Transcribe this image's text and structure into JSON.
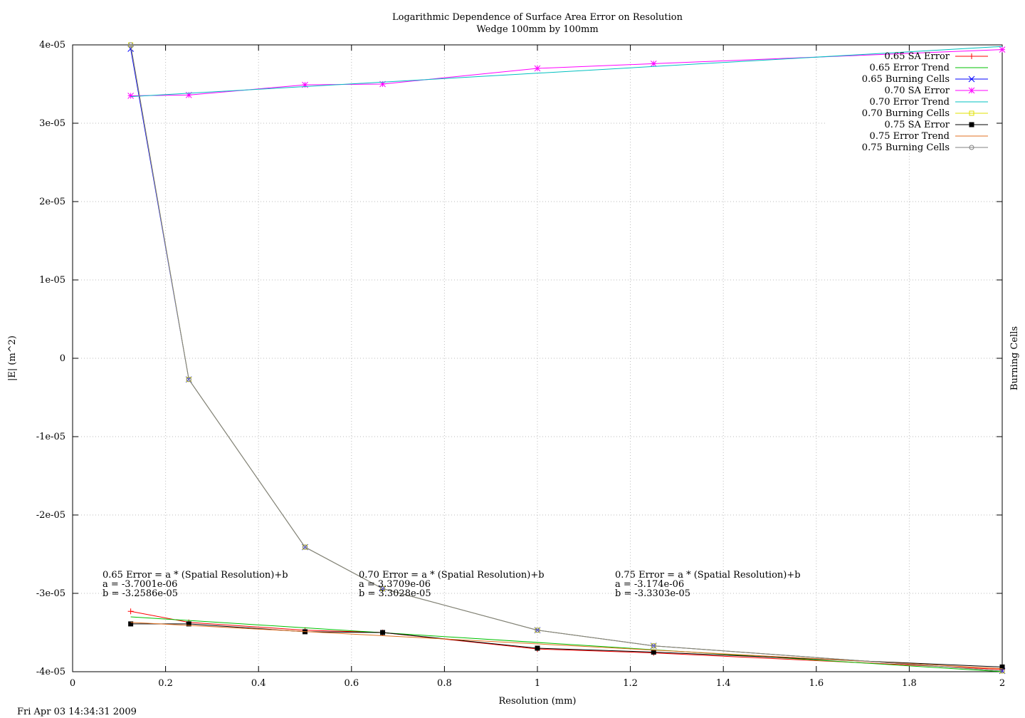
{
  "chart_data": {
    "type": "line",
    "title": "Logarithmic Dependence of Surface Area Error on Resolution",
    "subtitle": "Wedge 100mm by 100mm",
    "xlabel": "Resolution (mm)",
    "ylabel": "|E| (m^2)",
    "y2label": "Burning Cells",
    "xlim": [
      0,
      2
    ],
    "ylim": [
      -4e-05,
      4e-05
    ],
    "xticks": [
      "0",
      "0.2",
      "0.4",
      "0.6",
      "0.8",
      "1",
      "1.2",
      "1.4",
      "1.6",
      "1.8",
      "2"
    ],
    "yticks": [
      "-4e-05",
      "-3e-05",
      "-2e-05",
      "-1e-05",
      "0",
      "1e-05",
      "2e-05",
      "3e-05",
      "4e-05"
    ],
    "grid": true,
    "legend_position": "top-right",
    "timestamp": "Fri Apr 03 14:34:31 2009",
    "annotations": [
      {
        "line1": "0.65 Error = a * (Spatial Resolution)+b",
        "line2": "a = -3.7001e-06",
        "line3": "b = -3.2586e-05"
      },
      {
        "line1": "0.70 Error = a * (Spatial Resolution)+b",
        "line2": "a = 3.3709e-06",
        "line3": "b = 3.3028e-05"
      },
      {
        "line1": "0.75 Error = a * (Spatial Resolution)+b",
        "line2": "a = -3.174e-06",
        "line3": "b = -3.3303e-05"
      }
    ],
    "series": [
      {
        "name": "0.65 SA Error",
        "color": "#ff0000",
        "marker": "plus",
        "x": [
          0.125,
          0.25,
          0.5,
          0.667,
          1,
          1.25,
          2
        ],
        "y": [
          -3.23e-05,
          -3.37e-05,
          -3.47e-05,
          -3.5e-05,
          -3.71e-05,
          -3.76e-05,
          -3.97e-05
        ]
      },
      {
        "name": "0.65 Error Trend",
        "color": "#00c000",
        "marker": "none",
        "x": [
          0.125,
          2
        ],
        "y": [
          -3.3e-05,
          -4e-05
        ]
      },
      {
        "name": "0.65 Burning Cells",
        "color": "#0000ff",
        "marker": "x",
        "x": [
          0.125,
          0.25,
          0.5,
          0.667,
          1,
          1.25,
          2
        ],
        "y": [
          3.95e-05,
          -2.7e-06,
          -2.41e-05,
          -2.94e-05,
          -3.47e-05,
          -3.67e-05,
          -3.99e-05
        ]
      },
      {
        "name": "0.70 SA Error",
        "color": "#ff00ff",
        "marker": "star",
        "x": [
          0.125,
          0.25,
          0.5,
          0.667,
          1,
          1.25,
          2
        ],
        "y": [
          3.35e-05,
          3.36e-05,
          3.49e-05,
          3.5e-05,
          3.7e-05,
          3.76e-05,
          3.94e-05
        ]
      },
      {
        "name": "0.70 Error Trend",
        "color": "#00c0c0",
        "marker": "none",
        "x": [
          0.125,
          2
        ],
        "y": [
          3.34e-05,
          3.98e-05
        ]
      },
      {
        "name": "0.70 Burning Cells",
        "color": "#e0e000",
        "marker": "square-open",
        "x": [
          0.125,
          0.25,
          0.5,
          0.667,
          1,
          1.25,
          2
        ],
        "y": [
          4e-05,
          -2.7e-06,
          -2.41e-05,
          -2.94e-05,
          -3.47e-05,
          -3.67e-05,
          -3.99e-05
        ]
      },
      {
        "name": "0.75 SA Error",
        "color": "#000000",
        "marker": "square-filled",
        "x": [
          0.125,
          0.25,
          0.5,
          0.667,
          1,
          1.25,
          2
        ],
        "y": [
          -3.39e-05,
          -3.39e-05,
          -3.49e-05,
          -3.5e-05,
          -3.7e-05,
          -3.75e-05,
          -3.94e-05
        ]
      },
      {
        "name": "0.75 Error Trend",
        "color": "#e07020",
        "marker": "none",
        "x": [
          0.125,
          2
        ],
        "y": [
          -3.37e-05,
          -3.96e-05
        ]
      },
      {
        "name": "0.75 Burning Cells",
        "color": "#808080",
        "marker": "circle",
        "x": [
          0.125,
          0.25,
          0.5,
          0.667,
          1,
          1.25,
          2
        ],
        "y": [
          4e-05,
          -2.7e-06,
          -2.41e-05,
          -2.94e-05,
          -3.47e-05,
          -3.67e-05,
          -3.99e-05
        ]
      }
    ]
  }
}
